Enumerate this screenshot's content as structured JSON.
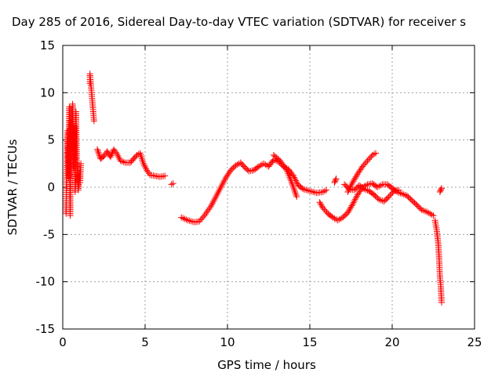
{
  "chart_data": {
    "type": "scatter",
    "title": "Day 285 of 2016, Sidereal Day-to-day VTEC variation (SDTVAR) for receiver s",
    "xlabel": "GPS time / hours",
    "ylabel": "SDTVAR / TECUs",
    "xlim": [
      0,
      25
    ],
    "ylim": [
      -15,
      15
    ],
    "xticks": [
      0,
      5,
      10,
      15,
      20,
      25
    ],
    "yticks": [
      -15,
      -10,
      -5,
      0,
      5,
      10,
      15
    ],
    "grid": true,
    "marker": "+",
    "series": [
      {
        "name": "SDTVAR",
        "color": "#ff0000",
        "segments": [
          [
            [
              0.2,
              -2.8
            ],
            [
              0.25,
              3.5
            ],
            [
              0.3,
              6.0
            ],
            [
              0.35,
              1.0
            ],
            [
              0.4,
              8.5
            ],
            [
              0.45,
              -3.0
            ],
            [
              0.5,
              7.0
            ],
            [
              0.55,
              4.5
            ],
            [
              0.6,
              8.8
            ],
            [
              0.65,
              2.0
            ],
            [
              0.7,
              6.5
            ],
            [
              0.75,
              -0.5
            ],
            [
              0.8,
              8.0
            ],
            [
              0.85,
              3.0
            ],
            [
              0.9,
              1.0
            ],
            [
              0.95,
              -0.3
            ],
            [
              1.0,
              1.5
            ],
            [
              1.05,
              0.5
            ],
            [
              1.1,
              2.5
            ]
          ],
          [
            [
              1.65,
              11.0
            ],
            [
              1.65,
              12.0
            ],
            [
              1.9,
              7.0
            ]
          ],
          [
            [
              2.1,
              4.0
            ],
            [
              2.3,
              3.0
            ],
            [
              2.5,
              3.3
            ],
            [
              2.7,
              3.8
            ],
            [
              2.9,
              3.2
            ],
            [
              3.1,
              4.0
            ],
            [
              3.3,
              3.5
            ],
            [
              3.5,
              2.8
            ],
            [
              3.8,
              2.6
            ],
            [
              4.1,
              2.6
            ],
            [
              4.3,
              3.0
            ],
            [
              4.5,
              3.4
            ],
            [
              4.7,
              3.6
            ],
            [
              4.9,
              2.5
            ],
            [
              5.1,
              1.8
            ],
            [
              5.3,
              1.3
            ],
            [
              5.6,
              1.2
            ],
            [
              5.9,
              1.1
            ],
            [
              6.2,
              1.2
            ]
          ],
          [
            [
              6.6,
              0.3
            ],
            [
              6.7,
              0.4
            ]
          ],
          [
            [
              7.2,
              -3.2
            ],
            [
              7.6,
              -3.5
            ],
            [
              8.0,
              -3.7
            ],
            [
              8.3,
              -3.6
            ],
            [
              8.6,
              -3.0
            ],
            [
              9.0,
              -2.0
            ],
            [
              9.3,
              -1.0
            ],
            [
              9.6,
              0.0
            ],
            [
              9.9,
              1.0
            ],
            [
              10.2,
              1.8
            ],
            [
              10.5,
              2.3
            ],
            [
              10.8,
              2.6
            ],
            [
              11.0,
              2.2
            ],
            [
              11.3,
              1.7
            ],
            [
              11.6,
              1.8
            ],
            [
              11.9,
              2.2
            ],
            [
              12.2,
              2.5
            ],
            [
              12.5,
              2.2
            ],
            [
              12.8,
              2.9
            ],
            [
              13.1,
              2.7
            ],
            [
              13.4,
              2.2
            ],
            [
              13.7,
              1.9
            ],
            [
              14.0,
              1.2
            ],
            [
              14.3,
              0.2
            ],
            [
              14.6,
              -0.2
            ],
            [
              15.0,
              -0.4
            ],
            [
              15.4,
              -0.6
            ],
            [
              15.8,
              -0.5
            ],
            [
              16.0,
              -0.3
            ]
          ],
          [
            [
              12.8,
              3.4
            ],
            [
              13.2,
              2.8
            ],
            [
              13.6,
              1.8
            ],
            [
              13.9,
              0.5
            ],
            [
              14.1,
              -0.5
            ],
            [
              14.2,
              -1.0
            ]
          ],
          [
            [
              15.6,
              -1.6
            ],
            [
              15.8,
              -2.2
            ],
            [
              16.1,
              -2.8
            ],
            [
              16.4,
              -3.2
            ],
            [
              16.7,
              -3.5
            ],
            [
              17.0,
              -3.2
            ],
            [
              17.3,
              -2.7
            ],
            [
              17.6,
              -1.8
            ],
            [
              17.9,
              -0.8
            ],
            [
              18.2,
              0.0
            ],
            [
              18.5,
              0.3
            ],
            [
              18.8,
              0.4
            ],
            [
              19.1,
              0.0
            ],
            [
              19.4,
              0.3
            ],
            [
              19.7,
              0.3
            ],
            [
              20.0,
              -0.1
            ],
            [
              20.3,
              -0.5
            ],
            [
              20.6,
              -0.7
            ],
            [
              20.9,
              -0.9
            ],
            [
              21.2,
              -1.4
            ],
            [
              21.5,
              -1.9
            ],
            [
              21.8,
              -2.4
            ],
            [
              22.1,
              -2.6
            ],
            [
              22.4,
              -2.9
            ],
            [
              22.5,
              -3.0
            ]
          ],
          [
            [
              16.5,
              0.5
            ],
            [
              16.6,
              0.9
            ]
          ],
          [
            [
              17.3,
              -0.5
            ],
            [
              17.6,
              0.5
            ],
            [
              17.9,
              1.4
            ],
            [
              18.2,
              2.2
            ],
            [
              18.5,
              2.8
            ],
            [
              18.8,
              3.4
            ],
            [
              19.0,
              3.6
            ]
          ],
          [
            [
              17.1,
              0.3
            ],
            [
              17.4,
              -0.2
            ],
            [
              17.7,
              -0.3
            ],
            [
              18.0,
              0.2
            ],
            [
              18.3,
              -0.2
            ],
            [
              18.6,
              -0.4
            ],
            [
              18.9,
              -0.8
            ],
            [
              19.2,
              -1.3
            ],
            [
              19.5,
              -1.5
            ],
            [
              19.8,
              -1.0
            ],
            [
              20.1,
              -0.4
            ],
            [
              20.4,
              -0.3
            ]
          ],
          [
            [
              22.6,
              -3.5
            ],
            [
              22.7,
              -4.5
            ],
            [
              22.8,
              -6.0
            ],
            [
              22.85,
              -7.5
            ],
            [
              22.9,
              -9.5
            ],
            [
              22.95,
              -10.5
            ],
            [
              23.0,
              -12.2
            ]
          ],
          [
            [
              22.9,
              -0.5
            ],
            [
              23.0,
              -0.1
            ]
          ]
        ]
      }
    ]
  }
}
